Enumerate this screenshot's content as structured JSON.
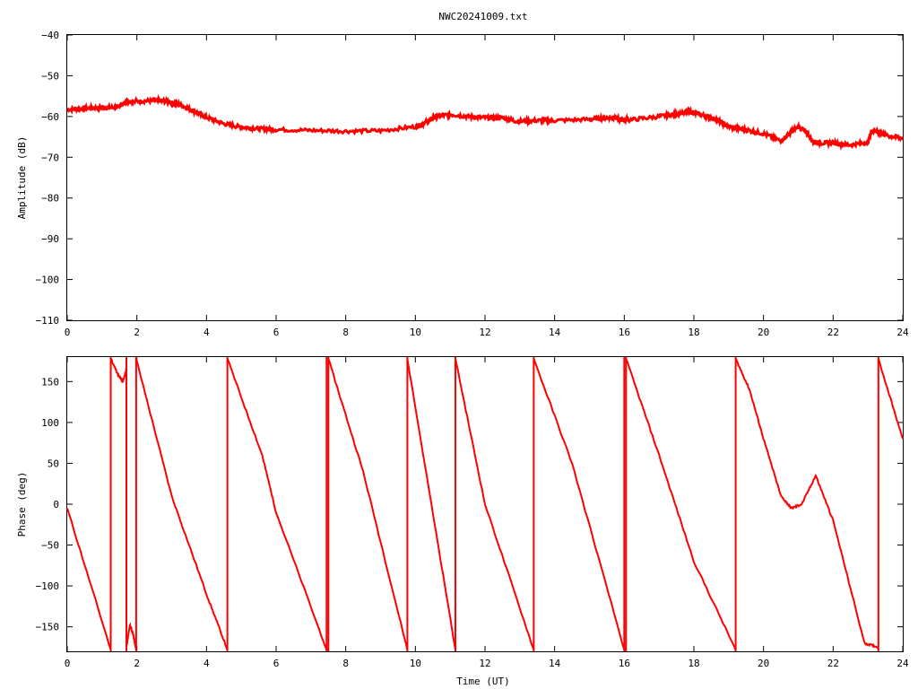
{
  "chart_data": [
    {
      "type": "line",
      "title": "NWC20241009.txt",
      "xlabel": "",
      "ylabel": "Amplitude (dB)",
      "xlim": [
        0,
        24
      ],
      "ylim": [
        -110,
        -40
      ],
      "xticks": [
        "0",
        "2",
        "4",
        "6",
        "8",
        "10",
        "12",
        "14",
        "16",
        "18",
        "20",
        "22",
        "24"
      ],
      "yticks": [
        "-40",
        "-50",
        "-60",
        "-70",
        "-80",
        "-90",
        "-100",
        "-110"
      ],
      "grid": false,
      "series": [
        {
          "color": "#ff0000",
          "x": [
            0,
            0.5,
            1.0,
            1.4,
            1.6,
            1.7,
            2.0,
            2.5,
            2.8,
            3.2,
            3.6,
            4.0,
            4.5,
            5.0,
            5.5,
            6.0,
            7.0,
            8.0,
            9.0,
            10.0,
            10.3,
            10.6,
            11.0,
            11.5,
            12.0,
            12.5,
            12.9,
            13.5,
            14.0,
            15.0,
            15.5,
            15.7,
            15.9,
            16.2,
            17.0,
            17.5,
            17.9,
            18.2,
            18.6,
            19.0,
            19.5,
            20.0,
            20.5,
            20.8,
            21.0,
            21.2,
            21.4,
            21.6,
            22.0,
            22.5,
            23.0,
            23.1,
            23.3,
            23.6,
            24.0
          ],
          "y": [
            -58.3,
            -58.0,
            -57.8,
            -57.8,
            -57.0,
            -56.2,
            -56.3,
            -56.1,
            -56.2,
            -57.0,
            -58.5,
            -60.2,
            -61.8,
            -62.6,
            -63.0,
            -63.2,
            -63.4,
            -63.6,
            -63.5,
            -62.5,
            -61.5,
            -60.0,
            -59.5,
            -60.0,
            -60.3,
            -60.3,
            -61.2,
            -61.0,
            -61.0,
            -60.7,
            -60.3,
            -60.2,
            -60.8,
            -60.8,
            -60.0,
            -59.4,
            -58.8,
            -59.6,
            -60.5,
            -62.5,
            -63.3,
            -64.2,
            -66.0,
            -63.8,
            -62.5,
            -63.5,
            -66.0,
            -66.5,
            -66.5,
            -67.0,
            -66.3,
            -63.5,
            -63.8,
            -64.8,
            -65.3
          ]
        }
      ]
    },
    {
      "type": "line",
      "title": "",
      "xlabel": "Time (UT)",
      "ylabel": "Phase (deg)",
      "xlim": [
        0,
        24
      ],
      "ylim": [
        -180,
        180
      ],
      "xticks": [
        "0",
        "2",
        "4",
        "6",
        "8",
        "10",
        "12",
        "14",
        "16",
        "18",
        "20",
        "22",
        "24"
      ],
      "yticks": [
        "150",
        "100",
        "50",
        "0",
        "-50",
        "-100",
        "-150"
      ],
      "grid": false,
      "series": [
        {
          "color": "#ff0000",
          "segments": [
            [
              [
                0,
                -5
              ],
              [
                1.25,
                -178
              ]
            ],
            [
              [
                1.25,
                178
              ],
              [
                1.5,
                155
              ],
              [
                1.6,
                150
              ],
              [
                1.7,
                165
              ]
            ],
            [
              [
                1.7,
                -175
              ],
              [
                1.8,
                -148
              ],
              [
                1.9,
                -160
              ],
              [
                1.98,
                -178
              ]
            ],
            [
              [
                1.98,
                178
              ],
              [
                3.0,
                10
              ],
              [
                4.0,
                -110
              ],
              [
                4.6,
                -178
              ]
            ],
            [
              [
                4.6,
                178
              ],
              [
                5.6,
                60
              ],
              [
                6.0,
                -10
              ],
              [
                7.45,
                -178
              ]
            ],
            [
              [
                7.5,
                178
              ],
              [
                8.5,
                40
              ],
              [
                9.77,
                -178
              ]
            ],
            [
              [
                9.77,
                178
              ],
              [
                11.15,
                -178
              ]
            ],
            [
              [
                11.15,
                178
              ],
              [
                12.0,
                0
              ],
              [
                13.4,
                -178
              ]
            ],
            [
              [
                13.4,
                178
              ],
              [
                14.5,
                50
              ],
              [
                16.0,
                -178
              ]
            ],
            [
              [
                16.05,
                178
              ],
              [
                17.0,
                60
              ],
              [
                18.0,
                -70
              ],
              [
                19.2,
                -178
              ]
            ],
            [
              [
                19.2,
                178
              ],
              [
                19.6,
                140
              ],
              [
                20.0,
                80
              ],
              [
                20.5,
                10
              ],
              [
                20.8,
                -5
              ],
              [
                21.1,
                0
              ],
              [
                21.5,
                35
              ],
              [
                22.0,
                -20
              ],
              [
                22.9,
                -170
              ],
              [
                23.3,
                -175
              ]
            ],
            [
              [
                23.3,
                178
              ],
              [
                24,
                80
              ]
            ]
          ],
          "wraps_x": [
            1.25,
            1.7,
            1.98,
            4.6,
            7.45,
            7.5,
            9.77,
            11.15,
            13.4,
            16.0,
            16.05,
            19.2,
            23.3
          ]
        }
      ]
    }
  ]
}
